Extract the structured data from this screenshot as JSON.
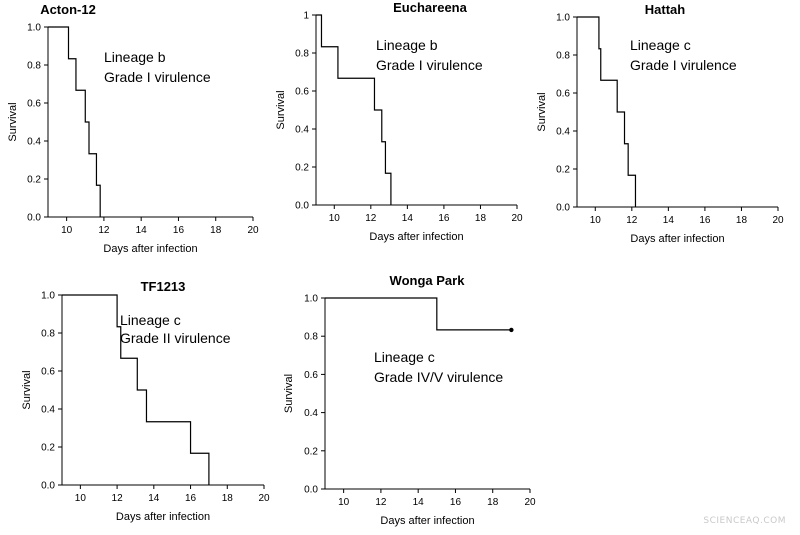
{
  "figure": {
    "watermark": "SCIENCEAQ.COM"
  },
  "chart_data": [
    {
      "type": "line",
      "step": true,
      "title": "Acton-12",
      "xlabel": "Days after infection",
      "ylabel": "Survival",
      "xlim": [
        9,
        20
      ],
      "ylim": [
        0,
        1
      ],
      "xticks": [
        10,
        12,
        14,
        16,
        18,
        20
      ],
      "yticks": [
        0,
        0.2,
        0.4,
        0.6,
        0.8,
        1.0
      ],
      "ytick_labels": [
        "0.0",
        "0.2",
        "0.4",
        "0.6",
        "0.8",
        "1.0"
      ],
      "annotations": [
        "Lineage b",
        "Grade I virulence"
      ],
      "x": [
        9,
        10.1,
        10.5,
        11.0,
        11.2,
        11.6,
        11.8
      ],
      "y": [
        1.0,
        0.833,
        0.667,
        0.5,
        0.333,
        0.167,
        0.0
      ],
      "censored": []
    },
    {
      "type": "line",
      "step": true,
      "title": "Euchareena",
      "xlabel": "Days after infection",
      "ylabel": "Survival",
      "xlim": [
        9,
        20
      ],
      "ylim": [
        0,
        1
      ],
      "xticks": [
        10,
        12,
        14,
        16,
        18,
        20
      ],
      "yticks": [
        0,
        0.2,
        0.4,
        0.6,
        0.8,
        1.0
      ],
      "ytick_labels": [
        "0.0",
        "0.2",
        "0.4",
        "0.6",
        "0.8",
        "1"
      ],
      "annotations": [
        "Lineage b",
        "Grade I virulence"
      ],
      "x": [
        9,
        9.3,
        10.2,
        12.2,
        12.6,
        12.8,
        13.1
      ],
      "y": [
        1.0,
        0.833,
        0.667,
        0.5,
        0.333,
        0.167,
        0.0
      ],
      "censored": []
    },
    {
      "type": "line",
      "step": true,
      "title": "Hattah",
      "xlabel": "Days after infection",
      "ylabel": "Survival",
      "xlim": [
        9,
        20
      ],
      "ylim": [
        0,
        1
      ],
      "xticks": [
        10,
        12,
        14,
        16,
        18,
        20
      ],
      "yticks": [
        0,
        0.2,
        0.4,
        0.6,
        0.8,
        1.0
      ],
      "ytick_labels": [
        "0.0",
        "0.2",
        "0.4",
        "0.6",
        "0.8",
        "1.0"
      ],
      "annotations": [
        "Lineage c",
        "Grade I virulence"
      ],
      "x": [
        9,
        10.2,
        10.3,
        11.2,
        11.6,
        11.8,
        12.2
      ],
      "y": [
        1.0,
        0.833,
        0.667,
        0.5,
        0.333,
        0.167,
        0.0
      ],
      "censored": []
    },
    {
      "type": "line",
      "step": true,
      "title": "TF1213",
      "xlabel": "Days after infection",
      "ylabel": "Survival",
      "xlim": [
        9,
        20
      ],
      "ylim": [
        0,
        1
      ],
      "xticks": [
        10,
        12,
        14,
        16,
        18,
        20
      ],
      "yticks": [
        0,
        0.2,
        0.4,
        0.6,
        0.8,
        1.0
      ],
      "ytick_labels": [
        "0.0",
        "0.2",
        "0.4",
        "0.6",
        "0.8",
        "1.0"
      ],
      "annotations": [
        "Lineage c",
        "Grade II virulence"
      ],
      "x": [
        9,
        12.0,
        12.2,
        13.1,
        13.6,
        16.0,
        17.0
      ],
      "y": [
        1.0,
        0.833,
        0.667,
        0.5,
        0.333,
        0.167,
        0.0
      ],
      "censored": []
    },
    {
      "type": "line",
      "step": true,
      "title": "Wonga Park",
      "xlabel": "Days after infection",
      "ylabel": "Survival",
      "xlim": [
        9,
        20
      ],
      "ylim": [
        0,
        1
      ],
      "xticks": [
        10,
        12,
        14,
        16,
        18,
        20
      ],
      "yticks": [
        0,
        0.2,
        0.4,
        0.6,
        0.8,
        1.0
      ],
      "ytick_labels": [
        "0.0",
        "0.2",
        "0.4",
        "0.6",
        "0.8",
        "1.0"
      ],
      "annotations": [
        "Lineage c",
        "Grade IV/V virulence"
      ],
      "x": [
        9,
        15.0
      ],
      "y": [
        1.0,
        0.833
      ],
      "end_x": 19,
      "censored": [
        [
          19,
          0.833
        ]
      ]
    }
  ]
}
